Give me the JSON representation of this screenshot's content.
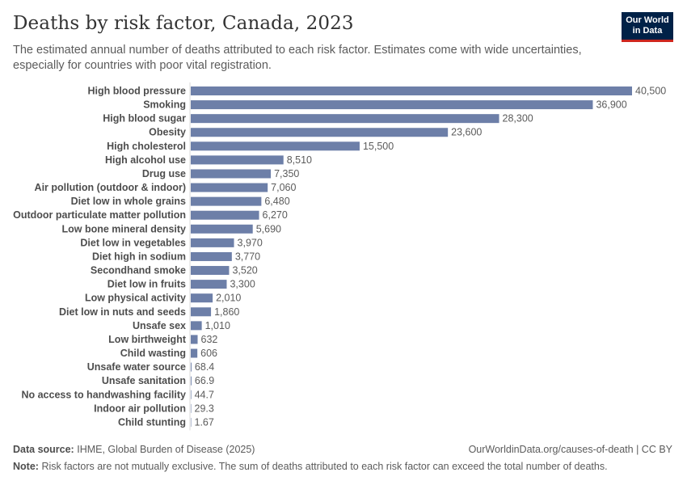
{
  "header": {
    "title": "Deaths by risk factor, Canada, 2023",
    "subtitle": "The estimated annual number of deaths attributed to each risk factor. Estimates come with wide uncertainties, especially for countries with poor vital registration."
  },
  "logo": {
    "line1": "Our World",
    "line2": "in Data"
  },
  "footer": {
    "source_label": "Data source:",
    "source_text": "IHME, Global Burden of Disease (2025)",
    "url": "OurWorldinData.org/causes-of-death | CC BY",
    "note_label": "Note:",
    "note_text": "Risk factors are not mutually exclusive. The sum of deaths attributed to each risk factor can exceed the total number of deaths."
  },
  "colors": {
    "bar": "#6d7fa8",
    "brand": "#002147",
    "brand_accent": "#ce261e"
  },
  "chart_data": {
    "type": "bar",
    "orientation": "horizontal",
    "title": "Deaths by risk factor, Canada, 2023",
    "xlabel": "",
    "ylabel": "",
    "xlim": [
      0,
      40500
    ],
    "grid": false,
    "categories": [
      "High blood pressure",
      "Smoking",
      "High blood sugar",
      "Obesity",
      "High cholesterol",
      "High alcohol use",
      "Drug use",
      "Air pollution (outdoor & indoor)",
      "Diet low in whole grains",
      "Outdoor particulate matter pollution",
      "Low bone mineral density",
      "Diet low in vegetables",
      "Diet high in sodium",
      "Secondhand smoke",
      "Diet low in fruits",
      "Low physical activity",
      "Diet low in nuts and seeds",
      "Unsafe sex",
      "Low birthweight",
      "Child wasting",
      "Unsafe water source",
      "Unsafe sanitation",
      "No access to handwashing facility",
      "Indoor air pollution",
      "Child stunting"
    ],
    "values": [
      40500,
      36900,
      28300,
      23600,
      15500,
      8510,
      7350,
      7060,
      6480,
      6270,
      5690,
      3970,
      3770,
      3520,
      3300,
      2010,
      1860,
      1010,
      632,
      606,
      68.4,
      66.9,
      44.7,
      29.3,
      1.67
    ],
    "value_labels": [
      "40,500",
      "36,900",
      "28,300",
      "23,600",
      "15,500",
      "8,510",
      "7,350",
      "7,060",
      "6,480",
      "6,270",
      "5,690",
      "3,970",
      "3,770",
      "3,520",
      "3,300",
      "2,010",
      "1,860",
      "1,010",
      "632",
      "606",
      "68.4",
      "66.9",
      "44.7",
      "29.3",
      "1.67"
    ]
  }
}
